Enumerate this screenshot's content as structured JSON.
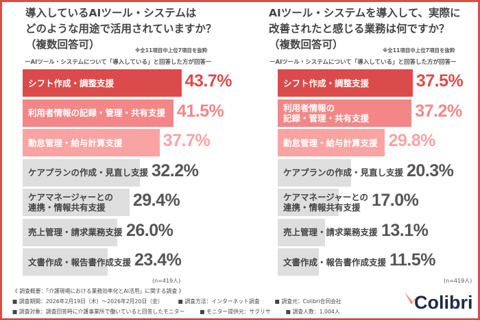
{
  "colors": {
    "frame": "#dc4b4b",
    "rank1": "#dc4b4b",
    "rank2": "#f38787",
    "rank3": "#f9a3a3",
    "other": "#dedede"
  },
  "chart_data": [
    {
      "type": "bar",
      "orientation": "horizontal",
      "title": "導入しているAIツール・システムはどのような用途で活用されていますか？（複数回答可）",
      "note": "※全11項目中上位7項目を抜粋",
      "subtitle": "ーAIツール・システムについて「導入している」と回答した方が回答ー",
      "title_lines": [
        "導入しているAIツール・システムは",
        "どのような用途で活用されていますか？",
        "（複数回答可）"
      ],
      "categories": [
        "シフト作成・調整支援",
        "利用者情報の記録・管理・共有支援",
        "勤怠管理・給与計算支援",
        "ケアプランの作成・見直し支援",
        "ケアマネージャーとの\n連携・情報共有支援",
        "売上管理・請求業務支援",
        "文書作成・報告書作成支援"
      ],
      "values": [
        43.7,
        41.5,
        37.7,
        32.2,
        29.4,
        26.0,
        23.4
      ],
      "labels": [
        "43.7%",
        "41.5%",
        "37.7%",
        "32.2%",
        "29.4%",
        "26.0%",
        "23.4%"
      ],
      "unit": "%",
      "sample": "(n=419人)"
    },
    {
      "type": "bar",
      "orientation": "horizontal",
      "title": "AIツール・システムを導入して、実際に改善されたと感じる業務は何ですか？（複数回答可）",
      "note": "※全11項目中上位7項目を抜粋",
      "subtitle": "ーAIツール・システムについて「導入している」と回答した方が回答ー",
      "title_lines": [
        "AIツール・システムを導入して、実際に",
        "改善されたと感じる業務は何ですか？",
        "（複数回答可）"
      ],
      "categories": [
        "シフト作成・調整支援",
        "利用者情報の\n記録・管理・共有支援",
        "勤怠管理・給与計算支援",
        "ケアプランの作成・見直し支援",
        "ケアマネージャーとの\n連携・情報共有支援",
        "売上管理・請求業務支援",
        "文書作成・報告書作成支援"
      ],
      "values": [
        37.5,
        37.2,
        29.8,
        20.3,
        17.0,
        13.1,
        11.5
      ],
      "labels": [
        "37.5%",
        "37.2%",
        "29.8%",
        "20.3%",
        "17.0%",
        "13.1%",
        "11.5%"
      ],
      "unit": "%",
      "sample": "(n=419人)"
    }
  ],
  "footer": {
    "heading": "《 調査概要：「介護現場における業務効率化とAI活用」に関する調査 》",
    "items": [
      "■ 調査期間：2026年2月19日（木）～2026年2月20日（金）",
      "■ 調査方法：インターネット調査",
      "■ 調査元：Colibri合同会社",
      "■ 調査対象：調査回答時に介護事業所で働いていると回答したモニター",
      "■ モニター提供元：サクリサ",
      "■ 調査人数：1,004人"
    ]
  },
  "logo": {
    "text": "Colibri"
  }
}
